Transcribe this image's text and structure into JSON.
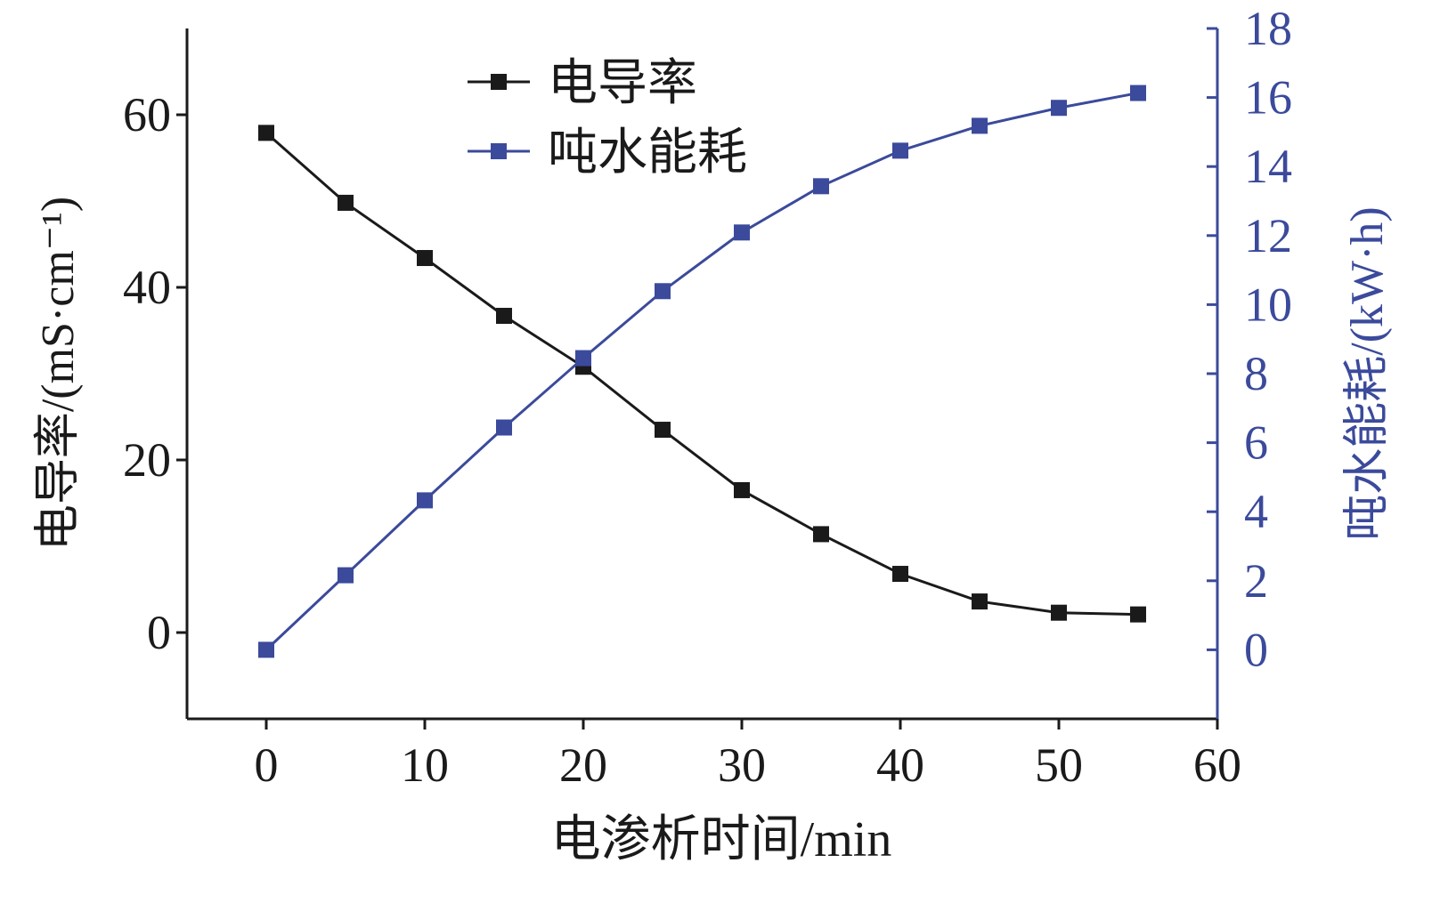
{
  "chart_data": {
    "type": "line",
    "title": "",
    "xlabel": "电渗析时间/min",
    "ylabel": "电导率/(mS·cm⁻¹)",
    "y2label": "吨水能耗/(kW·h)",
    "xlim": [
      -5,
      60
    ],
    "ylim": [
      -10,
      70
    ],
    "y2lim": [
      -2,
      18
    ],
    "xticks": [
      "0",
      "10",
      "20",
      "30",
      "40",
      "50",
      "60"
    ],
    "yticks": [
      "0",
      "20",
      "40",
      "60"
    ],
    "y2ticks": [
      "0",
      "2",
      "4",
      "6",
      "8",
      "10",
      "12",
      "14",
      "16",
      "18"
    ],
    "x": [
      0,
      5,
      10,
      15,
      20,
      25,
      30,
      35,
      40,
      45,
      50,
      55
    ],
    "legend_position": "top-center",
    "grid": false,
    "series": [
      {
        "name": "电导率",
        "axis": "left",
        "color": "#1a1a1a",
        "values": [
          57.9,
          49.8,
          43.4,
          36.7,
          30.8,
          23.5,
          16.5,
          11.4,
          6.8,
          3.6,
          2.3,
          2.1
        ]
      },
      {
        "name": "吨水能耗",
        "axis": "right",
        "color": "#3b4a9b",
        "values": [
          0,
          2.16,
          4.33,
          6.44,
          8.45,
          10.39,
          12.09,
          13.43,
          14.46,
          15.18,
          15.7,
          16.13
        ]
      }
    ]
  }
}
